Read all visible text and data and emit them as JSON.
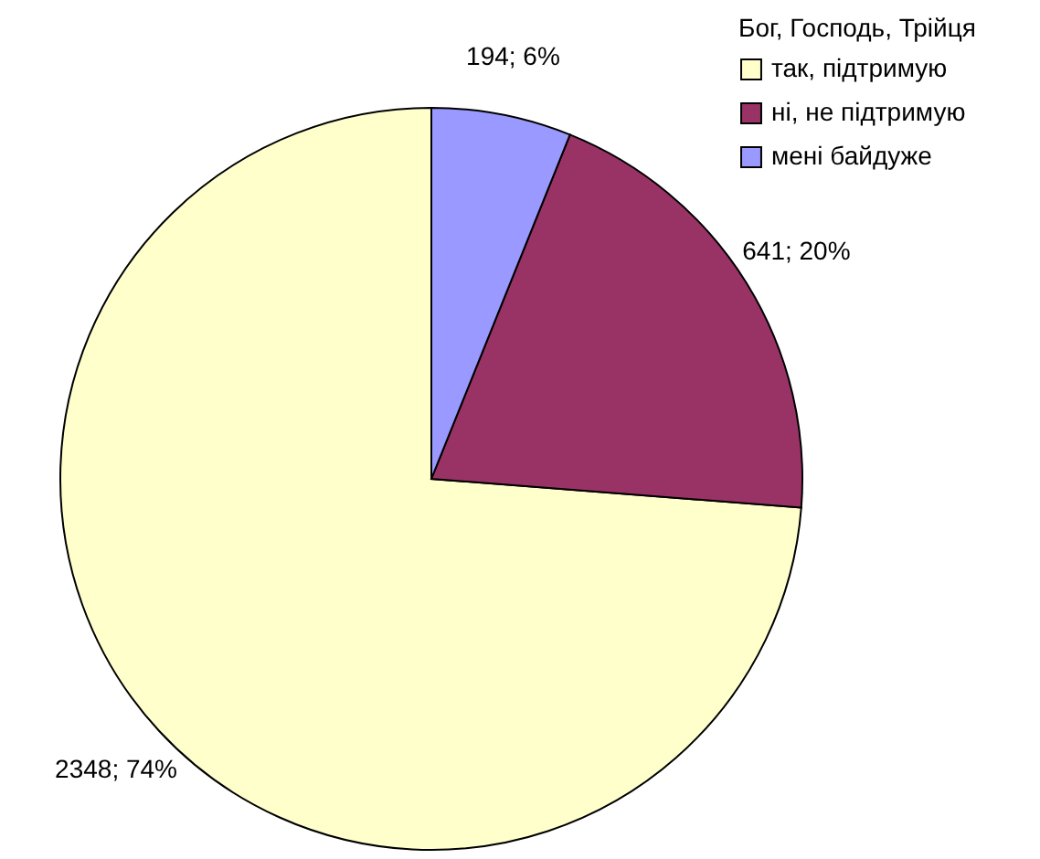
{
  "chart_data": {
    "type": "pie",
    "legend_title": "Бог, Господь, Трійця",
    "categories": [
      "так, підтримую",
      "ні, не підтримую",
      "мені байдуже"
    ],
    "values": [
      2348,
      641,
      194
    ],
    "colors": [
      "#ffffcc",
      "#993366",
      "#9999ff"
    ],
    "value_labels": [
      "2348; 74%",
      "641; 20%",
      "194; 6%"
    ],
    "legend": "top right"
  }
}
